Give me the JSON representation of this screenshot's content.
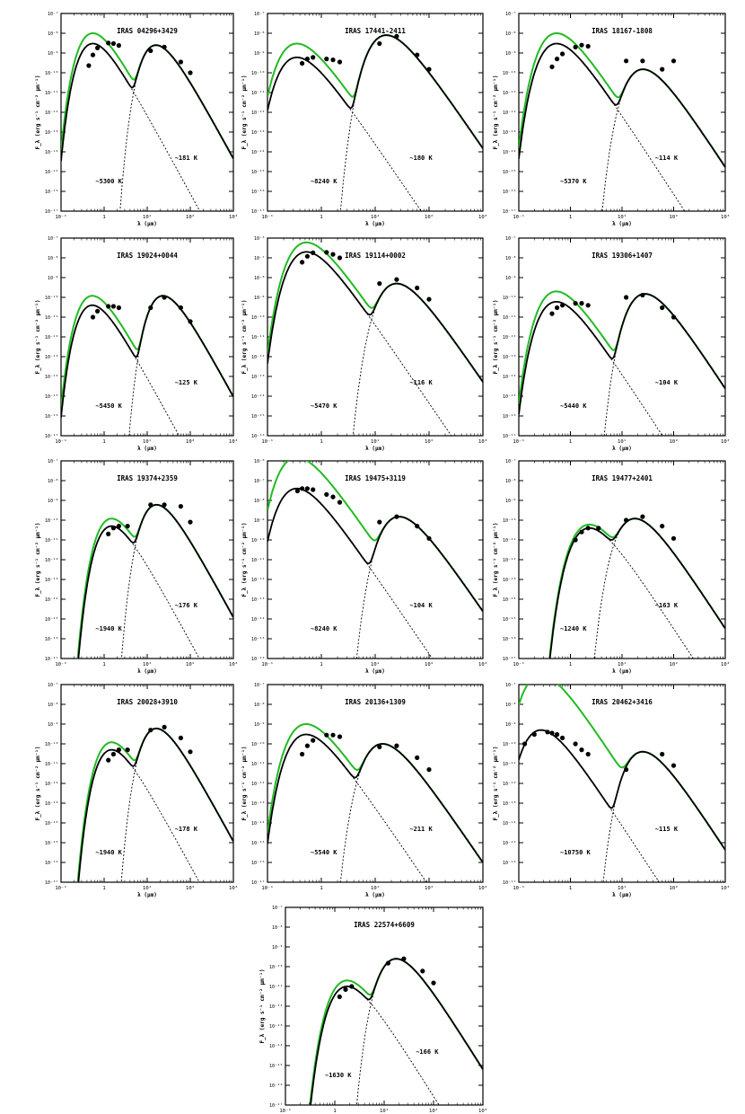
{
  "figure": {
    "description_free": true
  },
  "chart_data": [
    {
      "type": "line",
      "title": "IRAS 04296+3429",
      "xlabel": "λ (μm)",
      "ylabel": "F_λ (erg s⁻¹ cm⁻² μm⁻¹)",
      "xscale": "log",
      "yscale": "log",
      "xlim": [
        0.1,
        1000
      ],
      "ylim": [
        1e-17,
        1e-07
      ],
      "x_ticks": [
        "10⁻¹",
        "1",
        "10¹",
        "10²",
        "10³"
      ],
      "y_ticks": [
        "10⁻⁷",
        "10⁻⁸",
        "10⁻⁹",
        "10⁻¹⁰",
        "10⁻¹¹",
        "10⁻¹²",
        "10⁻¹³",
        "10⁻¹⁴",
        "10⁻¹⁵",
        "10⁻¹⁶",
        "10⁻¹⁷"
      ],
      "annotations": [
        "~5300 K",
        "~181 K"
      ],
      "star_temp": 5300,
      "dust_temp": 181,
      "star_peak": 3e-09,
      "dust_peak": 2.5e-09,
      "total_peak": 1e-08,
      "obs_points": [
        [
          0.44,
          2.3e-10
        ],
        [
          0.55,
          8e-10
        ],
        [
          0.7,
          1.8e-09
        ],
        [
          1.25,
          3.2e-09
        ],
        [
          1.65,
          3e-09
        ],
        [
          2.2,
          2.4e-09
        ],
        [
          12,
          1.3e-09
        ],
        [
          25,
          2e-09
        ],
        [
          60,
          3.5e-10
        ],
        [
          100,
          1e-10
        ]
      ]
    },
    {
      "type": "line",
      "title": "IRAS 17441-2411",
      "xlabel": "λ (μm)",
      "ylabel": "F_λ (erg s⁻¹ cm⁻² μm⁻¹)",
      "xscale": "log",
      "yscale": "log",
      "xlim": [
        0.1,
        1000
      ],
      "ylim": [
        1e-17,
        1e-07
      ],
      "x_ticks": [
        "10⁻¹",
        "1",
        "10¹",
        "10²",
        "10³"
      ],
      "y_ticks": [
        "10⁻⁷",
        "10⁻⁸",
        "10⁻⁹",
        "10⁻¹⁰",
        "10⁻¹¹",
        "10⁻¹²",
        "10⁻¹³",
        "10⁻¹⁴",
        "10⁻¹⁵",
        "10⁻¹⁶",
        "10⁻¹⁷"
      ],
      "annotations": [
        "~8240 K",
        "~180 K"
      ],
      "star_temp": 8240,
      "dust_temp": 180,
      "star_peak": 6e-10,
      "dust_peak": 8e-09,
      "total_peak": 3e-09,
      "obs_points": [
        [
          0.44,
          3e-10
        ],
        [
          0.55,
          5e-10
        ],
        [
          0.7,
          6e-10
        ],
        [
          1.25,
          5e-10
        ],
        [
          1.65,
          4.5e-10
        ],
        [
          2.2,
          3.5e-10
        ],
        [
          12,
          3e-09
        ],
        [
          25,
          7e-09
        ],
        [
          60,
          8e-10
        ],
        [
          100,
          1.5e-10
        ]
      ]
    },
    {
      "type": "line",
      "title": "IRAS 18167-1808",
      "xlabel": "λ (μm)",
      "ylabel": "F_λ (erg s⁻¹ cm⁻² μm⁻¹)",
      "xscale": "log",
      "yscale": "log",
      "xlim": [
        0.1,
        1000
      ],
      "ylim": [
        1e-17,
        1e-07
      ],
      "x_ticks": [
        "10⁻¹",
        "1",
        "10¹",
        "10²",
        "10³"
      ],
      "y_ticks": [
        "10⁻⁷",
        "10⁻⁸",
        "10⁻⁹",
        "10⁻¹⁰",
        "10⁻¹¹",
        "10⁻¹²",
        "10⁻¹³",
        "10⁻¹⁴",
        "10⁻¹⁵",
        "10⁻¹⁶",
        "10⁻¹⁷"
      ],
      "annotations": [
        "~5370 K",
        "~114 K"
      ],
      "star_temp": 5370,
      "dust_temp": 114,
      "star_peak": 3e-09,
      "dust_peak": 1.5e-10,
      "total_peak": 1e-08,
      "obs_points": [
        [
          0.44,
          2e-10
        ],
        [
          0.55,
          5e-10
        ],
        [
          0.7,
          9e-10
        ],
        [
          1.25,
          2e-09
        ],
        [
          1.65,
          2.5e-09
        ],
        [
          2.2,
          2.2e-09
        ],
        [
          12,
          4e-10
        ],
        [
          25,
          4e-10
        ],
        [
          60,
          1.5e-10
        ],
        [
          100,
          4e-10
        ]
      ]
    },
    {
      "type": "line",
      "title": "IRAS 19024+0044",
      "xlabel": "λ (μm)",
      "ylabel": "F_λ (erg s⁻¹ cm⁻² μm⁻¹)",
      "xscale": "log",
      "yscale": "log",
      "xlim": [
        0.1,
        1000
      ],
      "ylim": [
        1e-17,
        1e-07
      ],
      "x_ticks": [
        "10⁻¹",
        "1",
        "10¹",
        "10²",
        "10³"
      ],
      "y_ticks": [
        "10⁻⁷",
        "10⁻⁸",
        "10⁻⁹",
        "10⁻¹⁰",
        "10⁻¹¹",
        "10⁻¹²",
        "10⁻¹³",
        "10⁻¹⁴",
        "10⁻¹⁵",
        "10⁻¹⁶",
        "10⁻¹⁷"
      ],
      "annotations": [
        "~5450 K",
        "~125 K"
      ],
      "star_temp": 5450,
      "dust_temp": 125,
      "star_peak": 4e-11,
      "dust_peak": 1.2e-10,
      "total_peak": 1.2e-10,
      "obs_points": [
        [
          0.55,
          1e-11
        ],
        [
          0.7,
          2e-11
        ],
        [
          1.25,
          3.5e-11
        ],
        [
          1.65,
          3.5e-11
        ],
        [
          2.2,
          3e-11
        ],
        [
          12,
          3e-11
        ],
        [
          25,
          1e-10
        ],
        [
          60,
          3e-11
        ],
        [
          100,
          6e-12
        ]
      ]
    },
    {
      "type": "line",
      "title": "IRAS 19114+0002",
      "xlabel": "λ (μm)",
      "ylabel": "F_λ (erg s⁻¹ cm⁻² μm⁻¹)",
      "xscale": "log",
      "yscale": "log",
      "xlim": [
        0.1,
        1000
      ],
      "ylim": [
        1e-16,
        1e-06
      ],
      "x_ticks": [
        "10⁻¹",
        "1",
        "10¹",
        "10²",
        "10³"
      ],
      "y_ticks": [
        "10⁻⁶",
        "10⁻⁷",
        "10⁻⁸",
        "10⁻⁹",
        "10⁻¹⁰",
        "10⁻¹¹",
        "10⁻¹²",
        "10⁻¹³",
        "10⁻¹⁴",
        "10⁻¹⁵",
        "10⁻¹⁶"
      ],
      "annotations": [
        "~5470 K",
        "~116 K"
      ],
      "star_temp": 5470,
      "dust_temp": 116,
      "star_peak": 2e-07,
      "dust_peak": 5e-09,
      "total_peak": 6e-07,
      "obs_points": [
        [
          0.44,
          6e-08
        ],
        [
          0.55,
          1.2e-07
        ],
        [
          0.7,
          1.8e-07
        ],
        [
          1.25,
          1.9e-07
        ],
        [
          1.65,
          1.5e-07
        ],
        [
          2.2,
          1e-07
        ],
        [
          12,
          5e-09
        ],
        [
          25,
          8e-09
        ],
        [
          60,
          3e-09
        ],
        [
          100,
          8e-10
        ]
      ]
    },
    {
      "type": "line",
      "title": "IRAS 19306+1407",
      "xlabel": "λ (μm)",
      "ylabel": "F_λ (erg s⁻¹ cm⁻² μm⁻¹)",
      "xscale": "log",
      "yscale": "log",
      "xlim": [
        0.1,
        1000
      ],
      "ylim": [
        1e-17,
        1e-07
      ],
      "x_ticks": [
        "10⁻¹",
        "1",
        "10¹",
        "10²",
        "10³"
      ],
      "y_ticks": [
        "10⁻⁷",
        "10⁻⁸",
        "10⁻⁹",
        "10⁻¹⁰",
        "10⁻¹¹",
        "10⁻¹²",
        "10⁻¹³",
        "10⁻¹⁴",
        "10⁻¹⁵",
        "10⁻¹⁶",
        "10⁻¹⁷"
      ],
      "annotations": [
        "~5440 K",
        "~104 K"
      ],
      "star_temp": 5440,
      "dust_temp": 104,
      "star_peak": 6e-11,
      "dust_peak": 1.5e-10,
      "total_peak": 2e-10,
      "obs_points": [
        [
          0.44,
          1.5e-11
        ],
        [
          0.55,
          3e-11
        ],
        [
          0.7,
          4e-11
        ],
        [
          1.25,
          5e-11
        ],
        [
          1.65,
          5e-11
        ],
        [
          2.2,
          4e-11
        ],
        [
          12,
          1e-10
        ],
        [
          25,
          1.3e-10
        ],
        [
          60,
          3e-11
        ],
        [
          100,
          1e-11
        ]
      ]
    },
    {
      "type": "line",
      "title": "IRAS 19374+2359",
      "xlabel": "λ (μm)",
      "ylabel": "F_λ (erg s⁻¹ cm⁻² μm⁻¹)",
      "xscale": "log",
      "yscale": "log",
      "xlim": [
        0.1,
        1000
      ],
      "ylim": [
        1e-17,
        1e-07
      ],
      "x_ticks": [
        "10⁻¹",
        "1",
        "10¹",
        "10²",
        "10³"
      ],
      "y_ticks": [
        "10⁻⁷",
        "10⁻⁸",
        "10⁻⁹",
        "10⁻¹⁰",
        "10⁻¹¹",
        "10⁻¹²",
        "10⁻¹³",
        "10⁻¹⁴",
        "10⁻¹⁵",
        "10⁻¹⁶",
        "10⁻¹⁷"
      ],
      "annotations": [
        "~1940 K",
        "~176 K"
      ],
      "star_temp": 1940,
      "dust_temp": 176,
      "star_peak": 5e-11,
      "dust_peak": 6e-10,
      "total_peak": 1.2e-10,
      "obs_points": [
        [
          1.25,
          2e-11
        ],
        [
          1.65,
          4e-11
        ],
        [
          2.2,
          5e-11
        ],
        [
          3.5,
          5e-11
        ],
        [
          12,
          6e-10
        ],
        [
          25,
          6e-10
        ],
        [
          60,
          5e-10
        ],
        [
          100,
          8e-11
        ]
      ]
    },
    {
      "type": "line",
      "title": "IRAS 19475+3119",
      "xlabel": "λ (μm)",
      "ylabel": "F_λ (erg s⁻¹ cm⁻² μm⁻¹)",
      "xscale": "log",
      "yscale": "log",
      "xlim": [
        0.1,
        1000
      ],
      "ylim": [
        1e-16,
        1e-06
      ],
      "x_ticks": [
        "10⁻¹",
        "1",
        "10¹",
        "10²",
        "10³"
      ],
      "y_ticks": [
        "10⁻⁶",
        "10⁻⁷",
        "10⁻⁸",
        "10⁻⁹",
        "10⁻¹⁰",
        "10⁻¹¹",
        "10⁻¹²",
        "10⁻¹³",
        "10⁻¹⁴",
        "10⁻¹⁵",
        "10⁻¹⁶"
      ],
      "annotations": [
        "~8240 K",
        "~104 K"
      ],
      "star_temp": 8240,
      "dust_temp": 104,
      "star_peak": 4e-08,
      "dust_peak": 1.5e-09,
      "total_peak": 1.5e-06,
      "obs_points": [
        [
          0.36,
          3e-08
        ],
        [
          0.44,
          4e-08
        ],
        [
          0.55,
          4e-08
        ],
        [
          0.7,
          3.5e-08
        ],
        [
          1.25,
          2e-08
        ],
        [
          1.65,
          1.5e-08
        ],
        [
          2.2,
          8e-09
        ],
        [
          12,
          8e-10
        ],
        [
          25,
          1.5e-09
        ],
        [
          60,
          5e-10
        ],
        [
          100,
          1.2e-10
        ]
      ]
    },
    {
      "type": "line",
      "title": "IRAS 19477+2401",
      "xlabel": "λ (μm)",
      "ylabel": "F_λ (erg s⁻¹ cm⁻² μm⁻¹)",
      "xscale": "log",
      "yscale": "log",
      "xlim": [
        0.1,
        1000
      ],
      "ylim": [
        1e-17,
        1e-07
      ],
      "x_ticks": [
        "10⁻¹",
        "1",
        "10¹",
        "10²",
        "10³"
      ],
      "y_ticks": [
        "10⁻⁷",
        "10⁻⁸",
        "10⁻⁹",
        "10⁻¹⁰",
        "10⁻¹¹",
        "10⁻¹²",
        "10⁻¹³",
        "10⁻¹⁴",
        "10⁻¹⁵",
        "10⁻¹⁶",
        "10⁻¹⁷"
      ],
      "annotations": [
        "~1240 K",
        "~163 K"
      ],
      "star_temp": 1240,
      "dust_temp": 163,
      "star_peak": 4e-11,
      "dust_peak": 1.2e-10,
      "total_peak": 6e-11,
      "obs_points": [
        [
          1.25,
          1e-11
        ],
        [
          1.65,
          2.5e-11
        ],
        [
          2.2,
          4e-11
        ],
        [
          3.5,
          4e-11
        ],
        [
          12,
          1e-10
        ],
        [
          25,
          1.5e-10
        ],
        [
          60,
          5e-11
        ],
        [
          100,
          1.2e-11
        ]
      ]
    },
    {
      "type": "line",
      "title": "IRAS 20028+3910",
      "xlabel": "λ (μm)",
      "ylabel": "F_λ (erg s⁻¹ cm⁻² μm⁻¹)",
      "xscale": "log",
      "yscale": "log",
      "xlim": [
        0.1,
        1000
      ],
      "ylim": [
        1e-17,
        1e-07
      ],
      "x_ticks": [
        "10⁻¹",
        "1",
        "10¹",
        "10²",
        "10³"
      ],
      "y_ticks": [
        "10⁻⁷",
        "10⁻⁸",
        "10⁻⁹",
        "10⁻¹⁰",
        "10⁻¹¹",
        "10⁻¹²",
        "10⁻¹³",
        "10⁻¹⁴",
        "10⁻¹⁵",
        "10⁻¹⁶",
        "10⁻¹⁷"
      ],
      "annotations": [
        "~1940 K",
        "~178 K"
      ],
      "star_temp": 1940,
      "dust_temp": 178,
      "star_peak": 5e-11,
      "dust_peak": 6e-10,
      "total_peak": 1.2e-10,
      "obs_points": [
        [
          1.25,
          1.5e-11
        ],
        [
          1.65,
          3e-11
        ],
        [
          2.2,
          5e-11
        ],
        [
          3.5,
          5e-11
        ],
        [
          12,
          5e-10
        ],
        [
          25,
          7e-10
        ],
        [
          60,
          2e-10
        ],
        [
          100,
          4e-11
        ]
      ]
    },
    {
      "type": "line",
      "title": "IRAS 20136+1309",
      "xlabel": "λ (μm)",
      "ylabel": "F_λ (erg s⁻¹ cm⁻² μm⁻¹)",
      "xscale": "log",
      "yscale": "log",
      "xlim": [
        0.1,
        1000
      ],
      "ylim": [
        1e-17,
        1e-07
      ],
      "x_ticks": [
        "10⁻¹",
        "1",
        "10¹",
        "10²",
        "10³"
      ],
      "y_ticks": [
        "10⁻⁷",
        "10⁻⁸",
        "10⁻⁹",
        "10⁻¹⁰",
        "10⁻¹¹",
        "10⁻¹²",
        "10⁻¹³",
        "10⁻¹⁴",
        "10⁻¹⁵",
        "10⁻¹⁶",
        "10⁻¹⁷"
      ],
      "annotations": [
        "~5540 K",
        "~211 K"
      ],
      "star_temp": 5540,
      "dust_temp": 211,
      "star_peak": 3e-10,
      "dust_peak": 1e-10,
      "total_peak": 1e-09,
      "obs_points": [
        [
          0.44,
          3e-11
        ],
        [
          0.55,
          8e-11
        ],
        [
          0.7,
          1.5e-10
        ],
        [
          1.25,
          2.8e-10
        ],
        [
          1.65,
          2.8e-10
        ],
        [
          2.2,
          2.3e-10
        ],
        [
          12,
          7e-11
        ],
        [
          25,
          8e-11
        ],
        [
          60,
          2e-11
        ],
        [
          100,
          5e-12
        ]
      ]
    },
    {
      "type": "line",
      "title": "IRAS 20462+3416",
      "xlabel": "λ (μm)",
      "ylabel": "F_λ (erg s⁻¹ cm⁻² μm⁻¹)",
      "xscale": "log",
      "yscale": "log",
      "xlim": [
        0.1,
        1000
      ],
      "ylim": [
        1e-17,
        1e-07
      ],
      "x_ticks": [
        "10⁻¹",
        "1",
        "10¹",
        "10²",
        "10³"
      ],
      "y_ticks": [
        "10⁻⁷",
        "10⁻⁸",
        "10⁻⁹",
        "10⁻¹⁰",
        "10⁻¹¹",
        "10⁻¹²",
        "10⁻¹³",
        "10⁻¹⁴",
        "10⁻¹⁵",
        "10⁻¹⁶",
        "10⁻¹⁷"
      ],
      "annotations": [
        "~10750 K",
        "~115 K"
      ],
      "star_temp": 10750,
      "dust_temp": 115,
      "star_peak": 5e-10,
      "dust_peak": 4e-11,
      "total_peak": 3e-07,
      "obs_points": [
        [
          0.13,
          1e-10
        ],
        [
          0.2,
          3e-10
        ],
        [
          0.36,
          4e-10
        ],
        [
          0.44,
          3.5e-10
        ],
        [
          0.55,
          3e-10
        ],
        [
          0.7,
          2e-10
        ],
        [
          1.25,
          1e-10
        ],
        [
          1.65,
          5e-11
        ],
        [
          2.2,
          3e-11
        ],
        [
          60,
          3e-11
        ],
        [
          100,
          8e-12
        ],
        [
          12,
          5e-12
        ]
      ]
    },
    {
      "type": "line",
      "title": "IRAS 22574+6609",
      "xlabel": "λ (μm)",
      "ylabel": "F_λ (erg s⁻¹ cm⁻² μm⁻¹)",
      "xscale": "log",
      "yscale": "log",
      "xlim": [
        0.1,
        1000
      ],
      "ylim": [
        1e-17,
        1e-07
      ],
      "x_ticks": [
        "10⁻¹",
        "1",
        "10¹",
        "10²",
        "10³"
      ],
      "y_ticks": [
        "10⁻⁷",
        "10⁻⁸",
        "10⁻⁹",
        "10⁻¹⁰",
        "10⁻¹¹",
        "10⁻¹²",
        "10⁻¹³",
        "10⁻¹⁴",
        "10⁻¹⁵",
        "10⁻¹⁶",
        "10⁻¹⁷"
      ],
      "annotations": [
        "~1630 K",
        "~166 K"
      ],
      "star_temp": 1630,
      "dust_temp": 166,
      "star_peak": 1e-11,
      "dust_peak": 2.5e-10,
      "total_peak": 2e-11,
      "obs_points": [
        [
          1.25,
          3e-12
        ],
        [
          1.65,
          7e-12
        ],
        [
          2.2,
          1e-11
        ],
        [
          12,
          1.5e-10
        ],
        [
          25,
          2.5e-10
        ],
        [
          60,
          6e-11
        ],
        [
          100,
          1.5e-11
        ]
      ]
    }
  ]
}
